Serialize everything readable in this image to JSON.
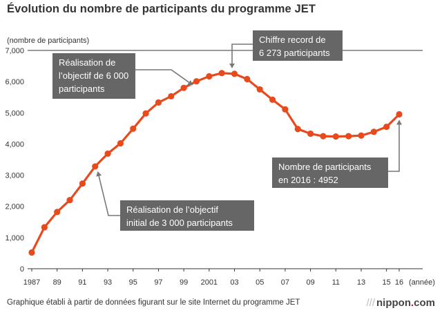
{
  "header": {
    "title": "Évolution du nombre de participants du programme JET"
  },
  "footer": {
    "source": "Graphique établi à partir de données figurant sur le site Internet du programme JET",
    "logo_slashes": "///",
    "logo_name": "nippon",
    "logo_dot": ".",
    "logo_tld": "com"
  },
  "chart_data": {
    "type": "line",
    "title": "Évolution du nombre de participants du programme JET",
    "ylabel": "(nombre de participants)",
    "xlabel": "(année)",
    "ylim": [
      0,
      7000
    ],
    "yticks": [
      0,
      1000,
      2000,
      3000,
      4000,
      5000,
      6000,
      7000
    ],
    "ytick_labels": [
      "0",
      "1,000",
      "2,000",
      "3,000",
      "4,000",
      "5,000",
      "6,000",
      "7,000"
    ],
    "xlim": [
      1987,
      2016
    ],
    "xticks": [
      1987,
      1989,
      1991,
      1993,
      1995,
      1997,
      1999,
      2001,
      2003,
      2005,
      2007,
      2009,
      2011,
      2013,
      2015,
      2016
    ],
    "xtick_labels": [
      "1987",
      "89",
      "91",
      "93",
      "95",
      "97",
      "99",
      "2001",
      "03",
      "05",
      "07",
      "09",
      "11",
      "13",
      "15",
      "16"
    ],
    "grid": false,
    "series": [
      {
        "color": "#e8491d",
        "x": [
          1987,
          1988,
          1989,
          1990,
          1991,
          1992,
          1993,
          1994,
          1995,
          1996,
          1997,
          1998,
          1999,
          2000,
          2001,
          2002,
          2003,
          2004,
          2005,
          2006,
          2007,
          2008,
          2009,
          2010,
          2011,
          2012,
          2013,
          2014,
          2015,
          2016
        ],
        "y": [
          520,
          1330,
          1820,
          2200,
          2730,
          3280,
          3690,
          4020,
          4490,
          4980,
          5330,
          5530,
          5800,
          6010,
          6170,
          6273,
          6250,
          6080,
          5750,
          5420,
          5110,
          4480,
          4330,
          4250,
          4240,
          4250,
          4270,
          4390,
          4550,
          4952
        ]
      }
    ],
    "annotations": [
      {
        "lines": [
          "Réalisation de",
          "l’objectif de 6 000",
          "participants"
        ],
        "target_x": 2000,
        "target_y": 6010
      },
      {
        "lines": [
          "Chiffre record de",
          "6 273 participants"
        ],
        "target_x": 2002,
        "target_y": 6273
      },
      {
        "lines": [
          "Réalisation de l’objectif",
          "initial de 3 000 participants"
        ],
        "target_x": 1992,
        "target_y": 3280
      },
      {
        "lines": [
          "Nombre de participants",
          "en 2016 : 4952"
        ],
        "target_x": 2016,
        "target_y": 4952
      }
    ]
  }
}
